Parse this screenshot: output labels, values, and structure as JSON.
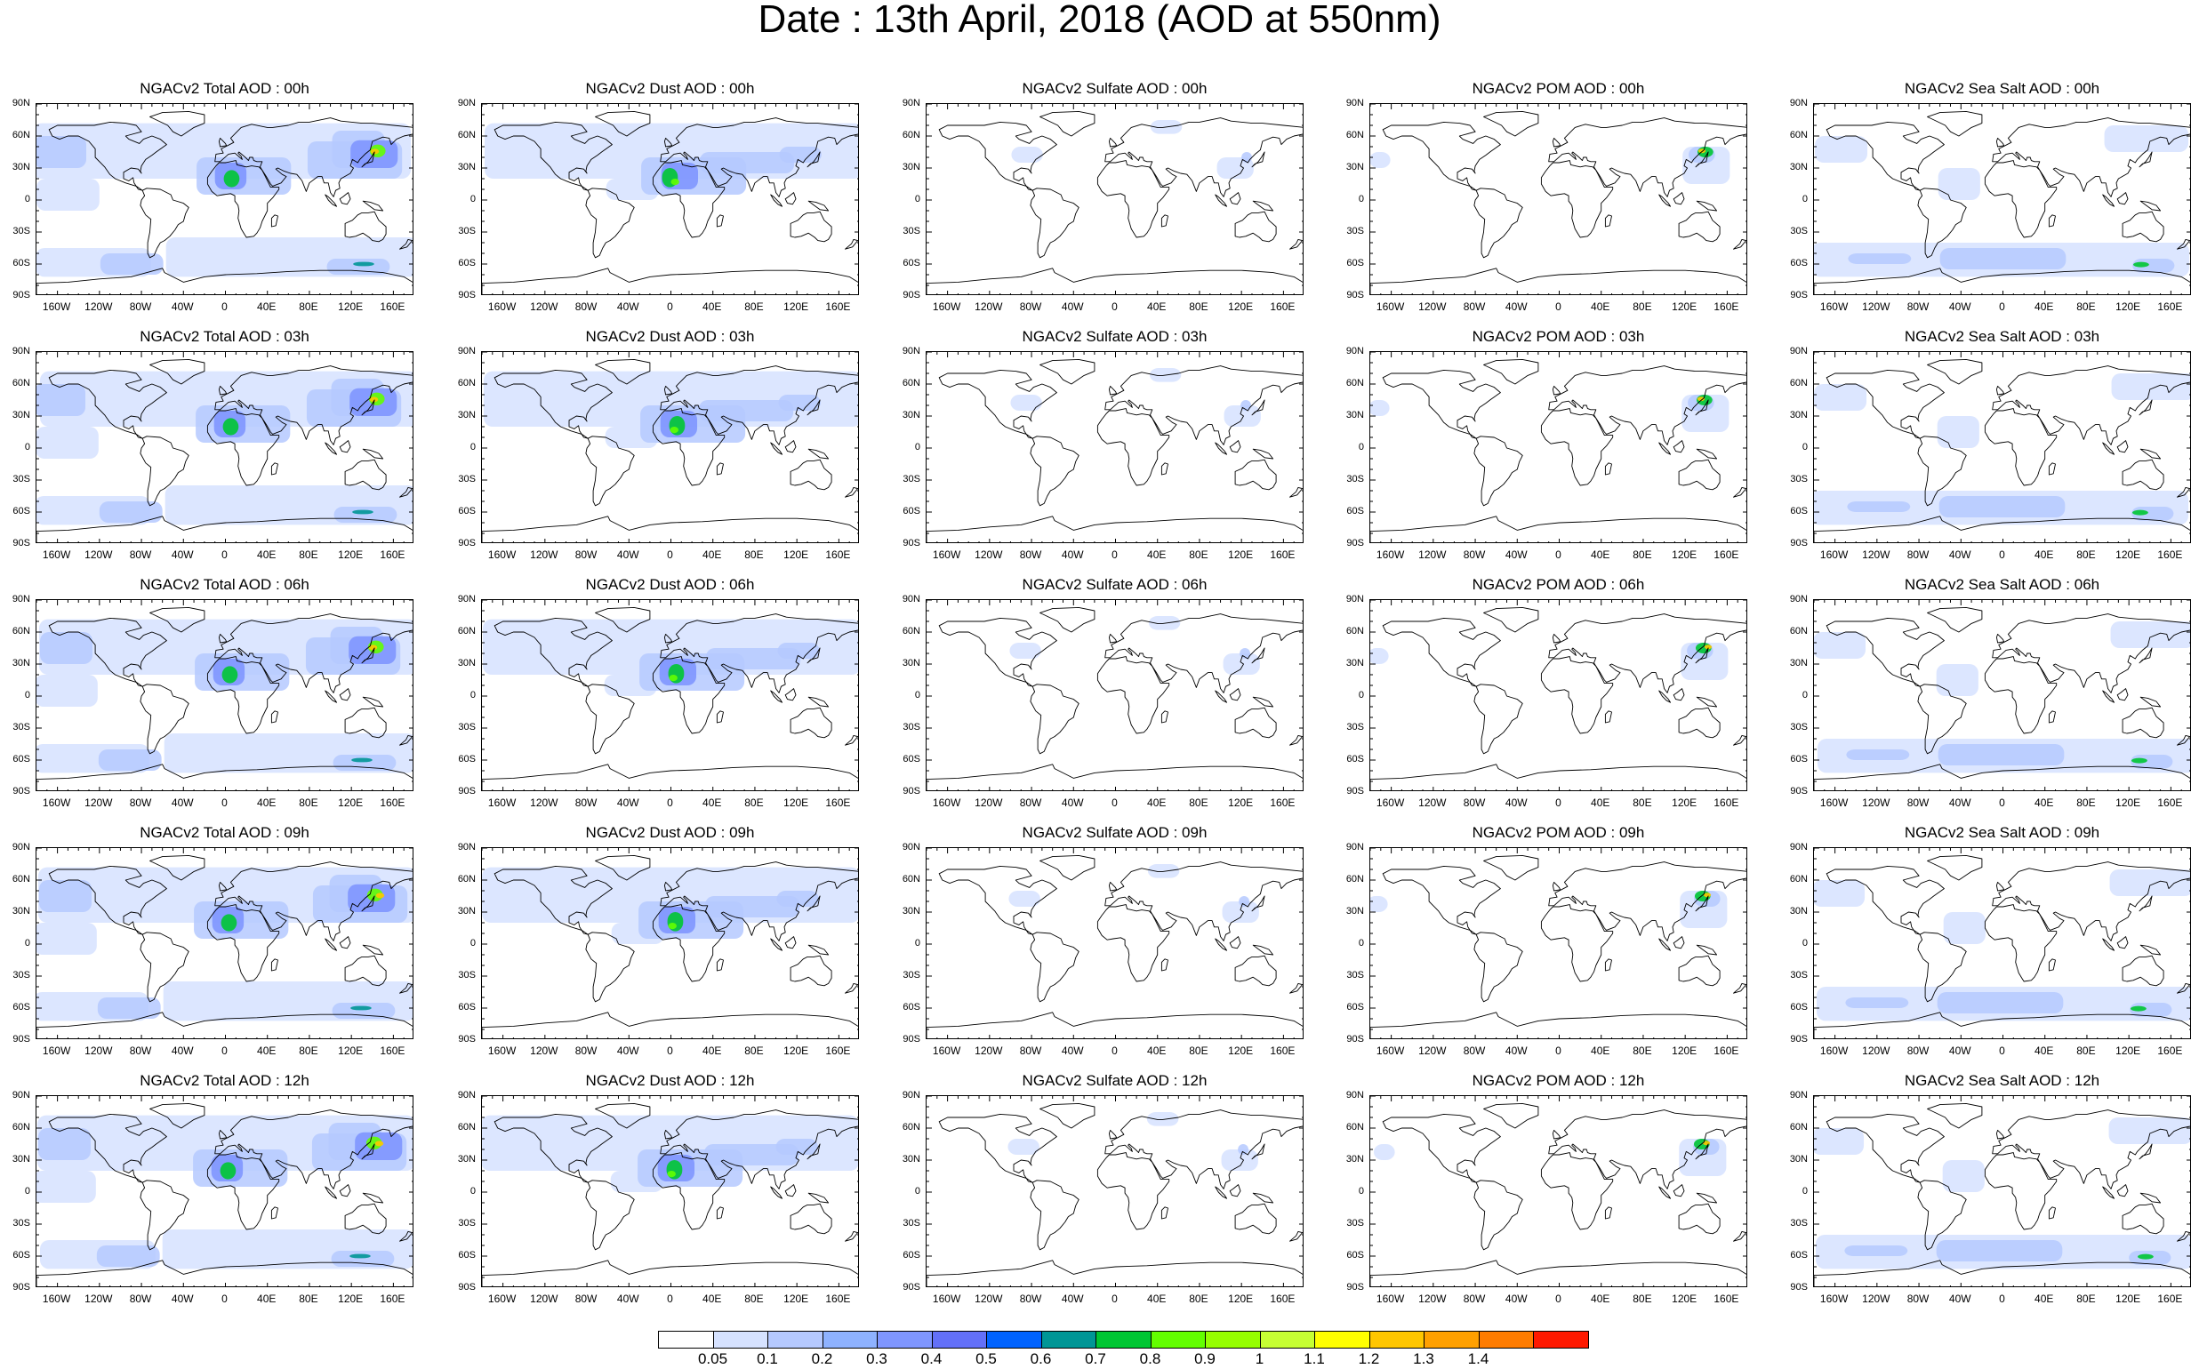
{
  "title": "Date : 13th April, 2018 (AOD at 550nm)",
  "panels": [
    {
      "title": "NGACv2 Total AOD : 00h",
      "species": "total",
      "hour": "00h"
    },
    {
      "title": "NGACv2 Dust AOD : 00h",
      "species": "dust",
      "hour": "00h"
    },
    {
      "title": "NGACv2 Sulfate AOD : 00h",
      "species": "sulfate",
      "hour": "00h"
    },
    {
      "title": "NGACv2 POM AOD : 00h",
      "species": "pom",
      "hour": "00h"
    },
    {
      "title": "NGACv2 Sea Salt AOD : 00h",
      "species": "seasalt",
      "hour": "00h"
    },
    {
      "title": "NGACv2 Total AOD : 03h",
      "species": "total",
      "hour": "03h"
    },
    {
      "title": "NGACv2 Dust AOD : 03h",
      "species": "dust",
      "hour": "03h"
    },
    {
      "title": "NGACv2 Sulfate AOD : 03h",
      "species": "sulfate",
      "hour": "03h"
    },
    {
      "title": "NGACv2 POM AOD : 03h",
      "species": "pom",
      "hour": "03h"
    },
    {
      "title": "NGACv2 Sea Salt AOD : 03h",
      "species": "seasalt",
      "hour": "03h"
    },
    {
      "title": "NGACv2 Total AOD : 06h",
      "species": "total",
      "hour": "06h"
    },
    {
      "title": "NGACv2 Dust AOD : 06h",
      "species": "dust",
      "hour": "06h"
    },
    {
      "title": "NGACv2 Sulfate AOD : 06h",
      "species": "sulfate",
      "hour": "06h"
    },
    {
      "title": "NGACv2 POM AOD : 06h",
      "species": "pom",
      "hour": "06h"
    },
    {
      "title": "NGACv2 Sea Salt AOD : 06h",
      "species": "seasalt",
      "hour": "06h"
    },
    {
      "title": "NGACv2 Total AOD : 09h",
      "species": "total",
      "hour": "09h"
    },
    {
      "title": "NGACv2 Dust AOD : 09h",
      "species": "dust",
      "hour": "09h"
    },
    {
      "title": "NGACv2 Sulfate AOD : 09h",
      "species": "sulfate",
      "hour": "09h"
    },
    {
      "title": "NGACv2 POM AOD : 09h",
      "species": "pom",
      "hour": "09h"
    },
    {
      "title": "NGACv2 Sea Salt  AOD : 09h",
      "species": "seasalt",
      "hour": "09h"
    },
    {
      "title": "NGACv2 Total AOD : 12h",
      "species": "total",
      "hour": "12h"
    },
    {
      "title": "NGACv2 Dust AOD : 12h",
      "species": "dust",
      "hour": "12h"
    },
    {
      "title": "NGACv2 Sulfate AOD : 12h",
      "species": "sulfate",
      "hour": "12h"
    },
    {
      "title": "NGACv2 POM  AOD : 12h",
      "species": "pom",
      "hour": "12h"
    },
    {
      "title": "NGACv2 Sea Salt  AOD : 12h",
      "species": "seasalt",
      "hour": "12h"
    }
  ],
  "lat_ticks": [
    "90N",
    "60N",
    "30N",
    "0",
    "30S",
    "60S",
    "90S"
  ],
  "lon_ticks": [
    "160W",
    "120W",
    "80W",
    "40W",
    "0",
    "40E",
    "80E",
    "120E",
    "160E"
  ],
  "colorbar": {
    "labels": [
      "0.05",
      "0.1",
      "0.2",
      "0.3",
      "0.4",
      "0.5",
      "0.6",
      "0.7",
      "0.8",
      "0.9",
      "1",
      "1.1",
      "1.2",
      "1.3",
      "1.4"
    ],
    "colors": [
      "#ffffff",
      "#d6e2ff",
      "#b5c9ff",
      "#8eb2ff",
      "#7f96ff",
      "#6370f8",
      "#0063ff",
      "#009696",
      "#00c633",
      "#63ff00",
      "#96ff00",
      "#c6ff33",
      "#ffff00",
      "#ffc600",
      "#ffa000",
      "#ff7c00",
      "#ff1900"
    ]
  }
}
